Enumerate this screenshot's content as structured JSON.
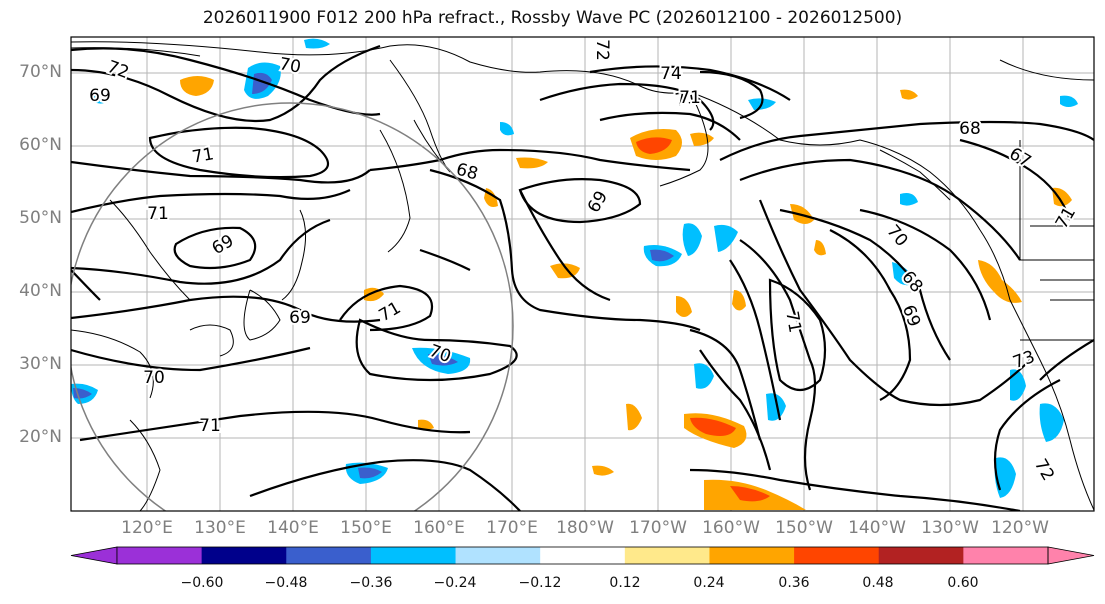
{
  "title": "2026011900 F012 200 hPa refract., Rossby Wave PC (2026012100 - 2026012500)",
  "lat_labels": [
    "70°N",
    "60°N",
    "50°N",
    "40°N",
    "30°N",
    "20°N"
  ],
  "lon_labels": [
    "120°E",
    "130°E",
    "140°E",
    "150°E",
    "160°E",
    "170°E",
    "180°W",
    "170°W",
    "160°W",
    "150°W",
    "140°W",
    "130°W",
    "120°W"
  ],
  "colorbar": {
    "colors": [
      "#9b30d8",
      "#00008b",
      "#3a5fcd",
      "#00bfff",
      "#b0e2ff",
      "#ffffff",
      "#ffe98b",
      "#ffa500",
      "#ff4500",
      "#b22222",
      "#ff82ab"
    ],
    "tick_labels": [
      "−0.60",
      "−0.48",
      "−0.36",
      "−0.24",
      "−0.12",
      "0.12",
      "0.24",
      "0.36",
      "0.48",
      "0.60"
    ]
  },
  "contour_labels": [
    "72",
    "70",
    "69",
    "71",
    "74",
    "71",
    "68",
    "69",
    "69",
    "71",
    "70",
    "71",
    "69",
    "70",
    "68",
    "69",
    "71",
    "71",
    "70",
    "68",
    "67",
    "71",
    "73",
    "72",
    "72",
    "71"
  ]
}
